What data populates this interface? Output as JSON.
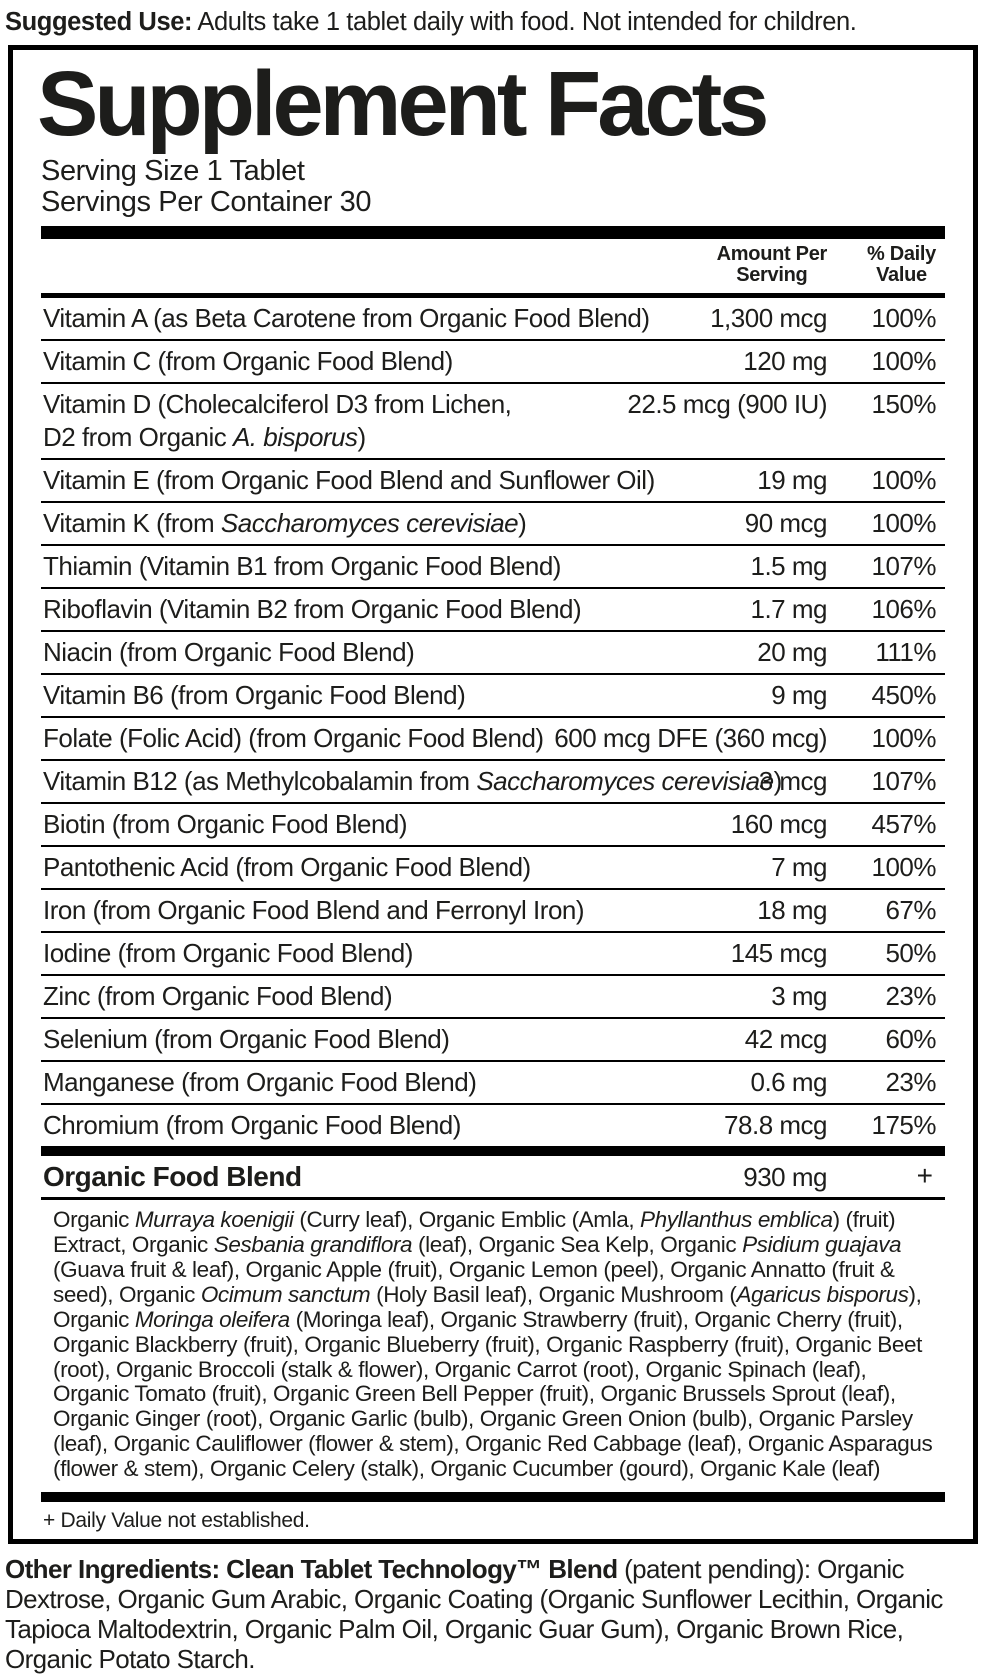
{
  "suggested_use": {
    "bold": "Suggested Use:",
    "rest": " Adults take 1 tablet daily with food. Not intended for children."
  },
  "panel": {
    "title": "Supplement Facts",
    "serving_size": "Serving Size 1 Tablet",
    "servings_per_container": "Servings Per Container 30",
    "columns": {
      "amount": "Amount Per\nServing",
      "daily_value": "% Daily\nValue"
    },
    "rows": [
      {
        "name": "Vitamin A (as Beta Carotene from Organic Food Blend)",
        "amount": "1,300 mcg",
        "dv": "100%"
      },
      {
        "name": "Vitamin C (from Organic Food Blend)",
        "amount": "120 mg",
        "dv": "100%"
      },
      {
        "name": "Vitamin D (Cholecalciferol D3 from Lichen,\nD2 from Organic *A. bisporus*)",
        "amount": "22.5 mcg (900 IU)",
        "dv": "150%"
      },
      {
        "name": "Vitamin E (from Organic Food Blend and Sunflower Oil)",
        "amount": "19 mg",
        "dv": "100%"
      },
      {
        "name": "Vitamin K (from *Saccharomyces cerevisiae*)",
        "amount": "90 mcg",
        "dv": "100%"
      },
      {
        "name": "Thiamin (Vitamin B1 from Organic Food Blend)",
        "amount": "1.5 mg",
        "dv": "107%"
      },
      {
        "name": "Riboflavin (Vitamin B2 from Organic Food Blend)",
        "amount": "1.7 mg",
        "dv": "106%"
      },
      {
        "name": "Niacin (from Organic Food Blend)",
        "amount": "20 mg",
        "dv": "111%"
      },
      {
        "name": "Vitamin B6 (from Organic Food Blend)",
        "amount": "9 mg",
        "dv": "450%"
      },
      {
        "name": "Folate (Folic Acid) (from Organic Food Blend)",
        "amount": "600 mcg DFE (360 mcg)",
        "dv": "100%"
      },
      {
        "name": "Vitamin B12 (as Methylcobalamin from *Saccharomyces cerevisiae*)",
        "amount": "3 mcg",
        "dv": "107%"
      },
      {
        "name": "Biotin (from Organic Food Blend)",
        "amount": "160 mcg",
        "dv": "457%"
      },
      {
        "name": "Pantothenic Acid (from Organic Food Blend)",
        "amount": "7 mg",
        "dv": "100%"
      },
      {
        "name": "Iron (from Organic Food Blend and Ferronyl Iron)",
        "amount": "18 mg",
        "dv": "67%"
      },
      {
        "name": "Iodine (from Organic Food Blend)",
        "amount": "145 mcg",
        "dv": "50%"
      },
      {
        "name": "Zinc (from Organic Food Blend)",
        "amount": "3 mg",
        "dv": "23%"
      },
      {
        "name": "Selenium (from Organic Food Blend)",
        "amount": "42 mcg",
        "dv": "60%"
      },
      {
        "name": "Manganese (from Organic Food Blend)",
        "amount": "0.6 mg",
        "dv": "23%"
      },
      {
        "name": "Chromium (from Organic Food Blend)",
        "amount": "78.8 mcg",
        "dv": "175%"
      }
    ],
    "blend": {
      "name": "Organic Food Blend",
      "amount": "930 mg",
      "dv": "+",
      "ingredients": "Organic *Murraya koenigii* (Curry leaf), Organic Emblic (Amla, *Phyllanthus emblica*) (fruit) Extract, Organic *Sesbania grandiflora* (leaf), Organic Sea Kelp, Organic *Psidium guajava* (Guava fruit & leaf), Organic Apple (fruit), Organic Lemon (peel), Organic Annatto (fruit & seed), Organic *Ocimum sanctum* (Holy Basil leaf), Organic Mushroom (*Agaricus bisporus*), Organic *Moringa oleifera* (Moringa leaf), Organic Strawberry (fruit), Organic Cherry (fruit), Organic Blackberry (fruit), Organic Blueberry (fruit), Organic Raspberry (fruit), Organic Beet (root), Organic Broccoli (stalk & flower), Organic Carrot (root), Organic Spinach (leaf), Organic Tomato (fruit), Organic Green Bell Pepper (fruit), Organic Brussels Sprout (leaf), Organic Ginger (root), Organic Garlic (bulb), Organic Green Onion (bulb), Organic Parsley (leaf), Organic Cauliflower (flower & stem), Organic Red Cabbage (leaf), Organic Asparagus (flower & stem), Organic Celery (stalk), Organic Cucumber (gourd), Organic Kale (leaf)"
    },
    "footnote": "+ Daily Value not established."
  },
  "other_ingredients": {
    "bold": "Other Ingredients: Clean Tablet Technology™ Blend",
    "rest": " (patent pending): Organic Dextrose, Organic Gum Arabic, Organic Coating (Organic Sunflower Lecithin, Organic Tapioca Maltodextrin, Organic Palm Oil, Organic Guar Gum), Organic Brown Rice, Organic Potato Starch."
  }
}
